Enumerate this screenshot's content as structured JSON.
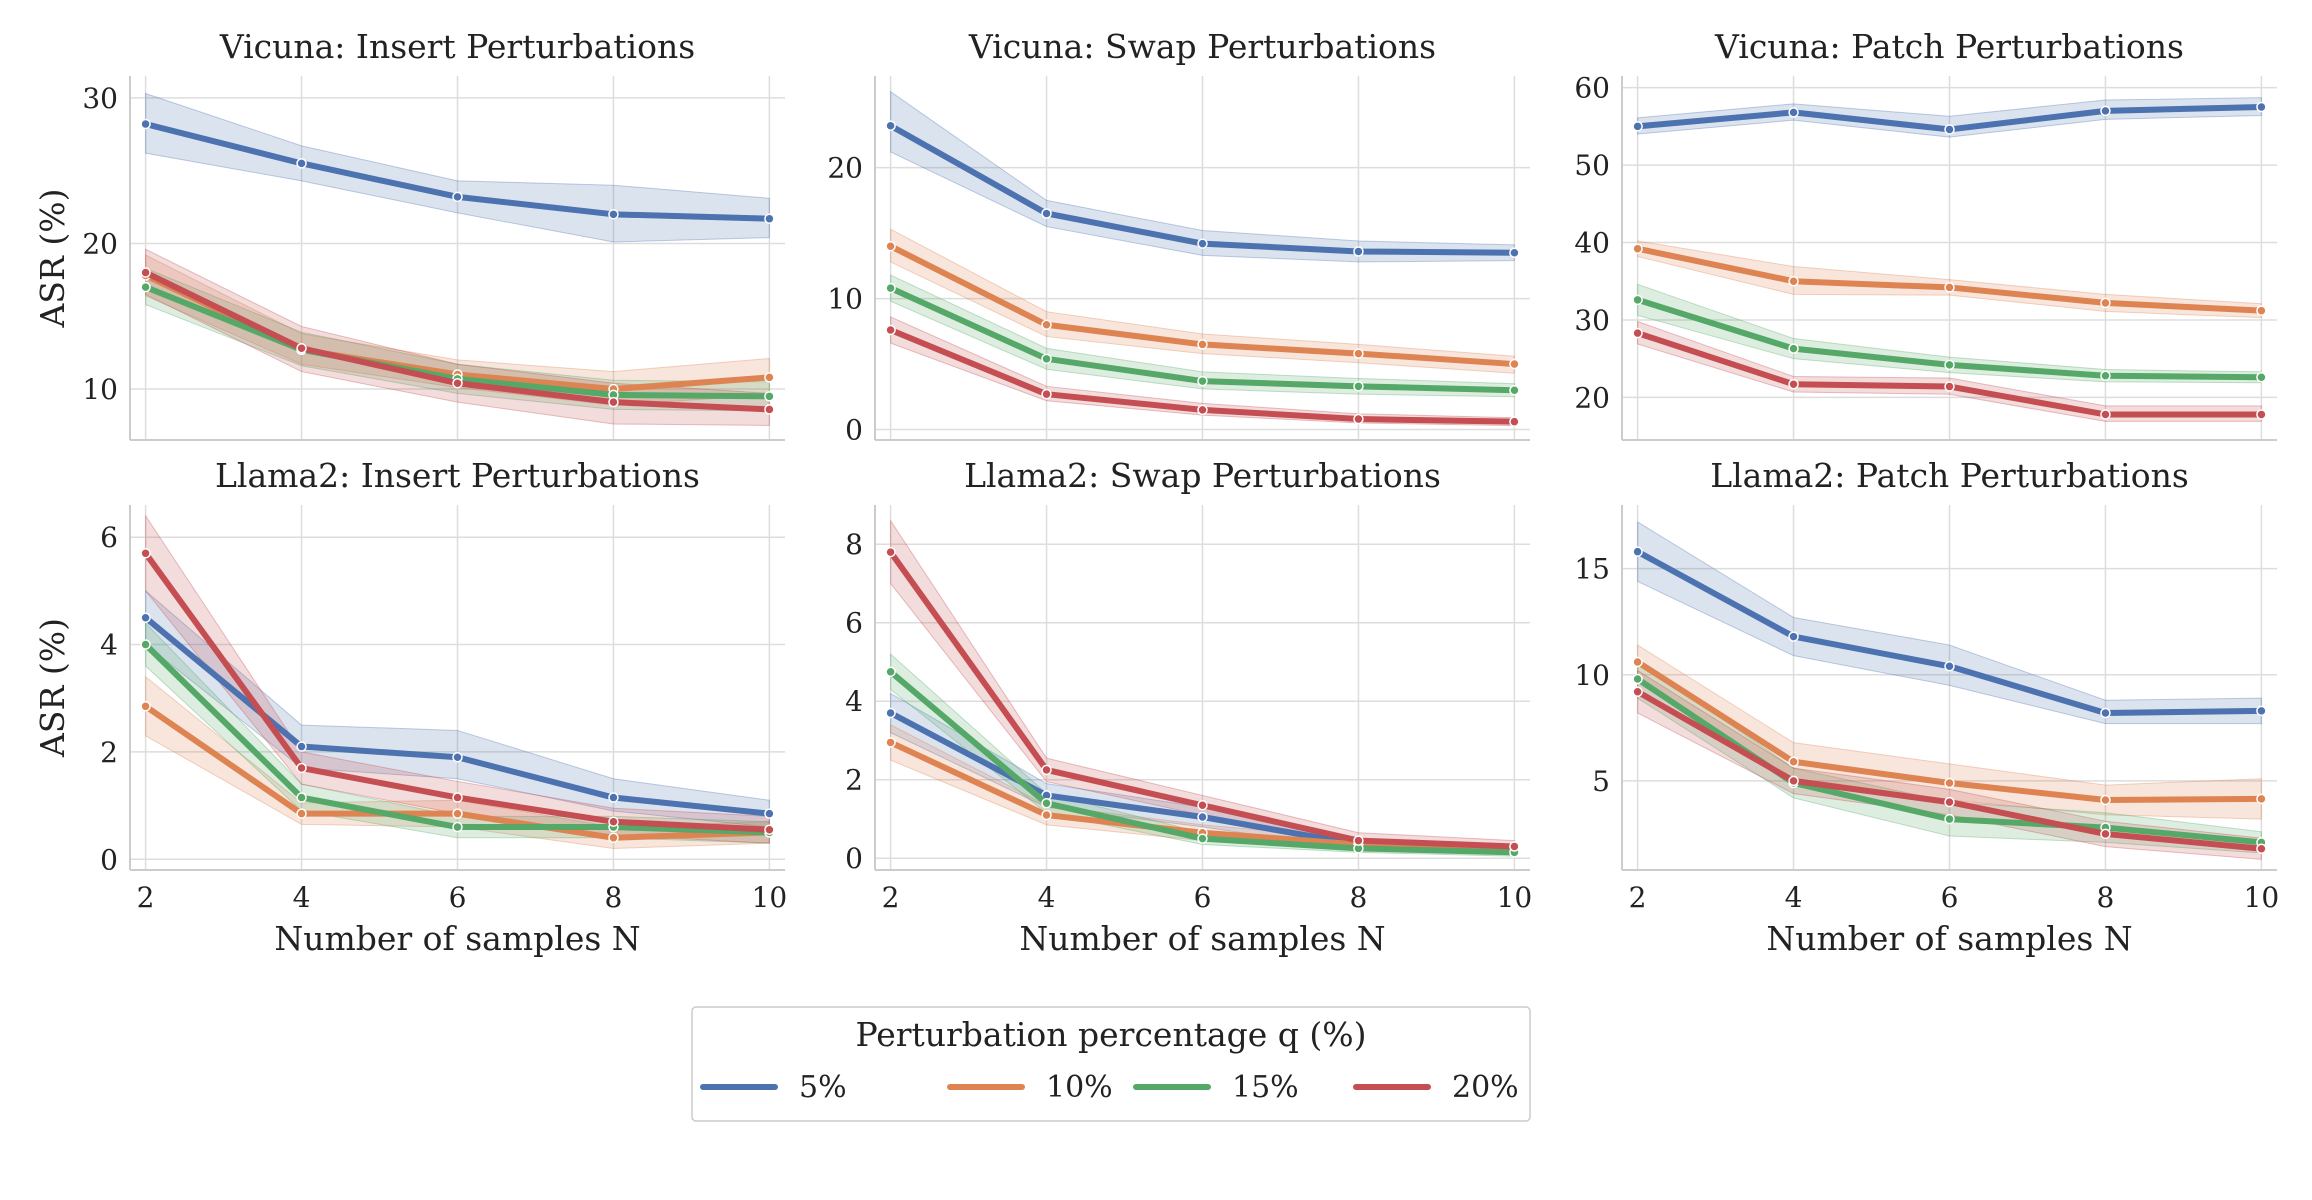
{
  "legend": {
    "title": "Perturbation percentage q (%)",
    "entries": [
      {
        "label": "5%",
        "color": "#4c72b0"
      },
      {
        "label": "10%",
        "color": "#dd8452"
      },
      {
        "label": "15%",
        "color": "#55a868"
      },
      {
        "label": "20%",
        "color": "#c44e52"
      }
    ]
  },
  "chart_data": [
    {
      "type": "line",
      "title": "Vicuna: Insert Perturbations",
      "xlabel": "",
      "ylabel": "ASR (%)",
      "x": [
        2,
        4,
        6,
        8,
        10
      ],
      "xlim": [
        1.8,
        10.2
      ],
      "ylim": [
        6.5,
        31.5
      ],
      "yticks": [
        10,
        20,
        30
      ],
      "series": [
        {
          "name": "5%",
          "color": "#4c72b0",
          "values": [
            28.2,
            25.5,
            23.2,
            22.0,
            21.7
          ],
          "ci_lower": [
            26.2,
            24.3,
            22.1,
            20.1,
            20.4
          ],
          "ci_upper": [
            30.3,
            26.7,
            24.3,
            24.0,
            23.1
          ]
        },
        {
          "name": "10%",
          "color": "#dd8452",
          "values": [
            17.8,
            12.7,
            11.0,
            10.0,
            10.8
          ],
          "ci_lower": [
            16.4,
            11.7,
            10.1,
            8.9,
            9.6
          ],
          "ci_upper": [
            19.2,
            13.8,
            12.0,
            11.2,
            12.1
          ]
        },
        {
          "name": "15%",
          "color": "#55a868",
          "values": [
            17.0,
            12.7,
            10.7,
            9.6,
            9.5
          ],
          "ci_lower": [
            15.8,
            11.6,
            9.7,
            8.6,
            8.5
          ],
          "ci_upper": [
            18.3,
            13.9,
            11.7,
            10.6,
            10.5
          ]
        },
        {
          "name": "20%",
          "color": "#c44e52",
          "values": [
            18.0,
            12.8,
            10.4,
            9.1,
            8.6
          ],
          "ci_lower": [
            16.5,
            11.2,
            9.1,
            7.6,
            7.5
          ],
          "ci_upper": [
            19.6,
            14.3,
            11.7,
            10.4,
            9.7
          ]
        }
      ]
    },
    {
      "type": "line",
      "title": "Vicuna: Swap Perturbations",
      "xlabel": "",
      "ylabel": "",
      "x": [
        2,
        4,
        6,
        8,
        10
      ],
      "xlim": [
        1.8,
        10.2
      ],
      "ylim": [
        -0.8,
        27.0
      ],
      "yticks": [
        0,
        10,
        20
      ],
      "series": [
        {
          "name": "5%",
          "color": "#4c72b0",
          "values": [
            23.2,
            16.5,
            14.2,
            13.6,
            13.5
          ],
          "ci_lower": [
            21.2,
            15.5,
            13.3,
            12.8,
            12.9
          ],
          "ci_upper": [
            25.8,
            17.5,
            15.2,
            14.4,
            14.1
          ]
        },
        {
          "name": "10%",
          "color": "#dd8452",
          "values": [
            14.0,
            8.0,
            6.5,
            5.8,
            5.0
          ],
          "ci_lower": [
            12.8,
            7.1,
            5.8,
            5.1,
            4.3
          ],
          "ci_upper": [
            15.3,
            9.0,
            7.3,
            6.5,
            5.6
          ]
        },
        {
          "name": "15%",
          "color": "#55a868",
          "values": [
            10.8,
            5.4,
            3.7,
            3.3,
            3.0
          ],
          "ci_lower": [
            9.8,
            4.6,
            3.1,
            2.7,
            2.5
          ],
          "ci_upper": [
            11.8,
            6.2,
            4.4,
            3.9,
            3.5
          ]
        },
        {
          "name": "20%",
          "color": "#c44e52",
          "values": [
            7.6,
            2.7,
            1.5,
            0.8,
            0.6
          ],
          "ci_lower": [
            6.6,
            2.2,
            1.1,
            0.5,
            0.3
          ],
          "ci_upper": [
            8.6,
            3.3,
            2.0,
            1.2,
            0.9
          ]
        }
      ]
    },
    {
      "type": "line",
      "title": "Vicuna: Patch Perturbations",
      "xlabel": "",
      "ylabel": "",
      "x": [
        2,
        4,
        6,
        8,
        10
      ],
      "xlim": [
        1.8,
        10.2
      ],
      "ylim": [
        14.5,
        61.5
      ],
      "yticks": [
        20,
        30,
        40,
        50,
        60
      ],
      "series": [
        {
          "name": "5%",
          "color": "#4c72b0",
          "values": [
            55.0,
            56.8,
            54.6,
            57.0,
            57.5
          ],
          "ci_lower": [
            54.0,
            55.8,
            53.6,
            55.9,
            56.4
          ],
          "ci_upper": [
            56.1,
            57.9,
            56.3,
            58.4,
            58.7
          ]
        },
        {
          "name": "10%",
          "color": "#dd8452",
          "values": [
            39.2,
            35.0,
            34.2,
            32.2,
            31.2
          ],
          "ci_lower": [
            38.2,
            33.3,
            33.2,
            31.1,
            30.3
          ],
          "ci_upper": [
            40.2,
            36.9,
            35.2,
            33.3,
            32.1
          ]
        },
        {
          "name": "15%",
          "color": "#55a868",
          "values": [
            32.6,
            26.3,
            24.2,
            22.8,
            22.6
          ],
          "ci_lower": [
            30.6,
            25.0,
            23.2,
            22.0,
            21.9
          ],
          "ci_upper": [
            34.6,
            27.6,
            25.2,
            23.6,
            23.3
          ]
        },
        {
          "name": "20%",
          "color": "#c44e52",
          "values": [
            28.3,
            21.7,
            21.4,
            17.8,
            17.8
          ],
          "ci_lower": [
            26.9,
            20.7,
            20.4,
            16.9,
            16.9
          ],
          "ci_upper": [
            29.8,
            22.7,
            22.5,
            18.9,
            18.9
          ]
        }
      ]
    },
    {
      "type": "line",
      "title": "Llama2: Insert Perturbations",
      "xlabel": "Number of samples N",
      "ylabel": "ASR (%)",
      "x": [
        2,
        4,
        6,
        8,
        10
      ],
      "xticks": [
        2,
        4,
        6,
        8,
        10
      ],
      "xlim": [
        1.8,
        10.2
      ],
      "ylim": [
        -0.2,
        6.6
      ],
      "yticks": [
        0,
        2,
        4,
        6
      ],
      "series": [
        {
          "name": "5%",
          "color": "#4c72b0",
          "values": [
            4.5,
            2.1,
            1.9,
            1.15,
            0.85
          ],
          "ci_lower": [
            4.0,
            1.7,
            1.5,
            0.9,
            0.6
          ],
          "ci_upper": [
            5.0,
            2.5,
            2.4,
            1.5,
            1.1
          ]
        },
        {
          "name": "10%",
          "color": "#dd8452",
          "values": [
            2.85,
            0.85,
            0.85,
            0.4,
            0.5
          ],
          "ci_lower": [
            2.3,
            0.65,
            0.6,
            0.2,
            0.3
          ],
          "ci_upper": [
            3.4,
            1.05,
            1.1,
            0.6,
            0.7
          ]
        },
        {
          "name": "15%",
          "color": "#55a868",
          "values": [
            4.0,
            1.15,
            0.6,
            0.6,
            0.5
          ],
          "ci_lower": [
            3.6,
            0.9,
            0.4,
            0.4,
            0.3
          ],
          "ci_upper": [
            4.4,
            1.4,
            0.8,
            0.8,
            0.7
          ]
        },
        {
          "name": "20%",
          "color": "#c44e52",
          "values": [
            5.7,
            1.7,
            1.15,
            0.7,
            0.55
          ],
          "ci_lower": [
            5.0,
            1.4,
            0.85,
            0.45,
            0.3
          ],
          "ci_upper": [
            6.4,
            2.0,
            1.45,
            0.95,
            0.8
          ]
        }
      ]
    },
    {
      "type": "line",
      "title": "Llama2: Swap Perturbations",
      "xlabel": "Number of samples N",
      "ylabel": "",
      "x": [
        2,
        4,
        6,
        8,
        10
      ],
      "xticks": [
        2,
        4,
        6,
        8,
        10
      ],
      "xlim": [
        1.8,
        10.2
      ],
      "ylim": [
        -0.3,
        9.0
      ],
      "yticks": [
        0,
        2,
        4,
        6,
        8
      ],
      "series": [
        {
          "name": "5%",
          "color": "#4c72b0",
          "values": [
            3.7,
            1.6,
            1.05,
            0.35,
            0.2
          ],
          "ci_lower": [
            3.2,
            1.3,
            0.8,
            0.2,
            0.1
          ],
          "ci_upper": [
            4.2,
            1.9,
            1.3,
            0.5,
            0.3
          ]
        },
        {
          "name": "10%",
          "color": "#dd8452",
          "values": [
            2.95,
            1.1,
            0.65,
            0.35,
            0.2
          ],
          "ci_lower": [
            2.5,
            0.85,
            0.45,
            0.2,
            0.1
          ],
          "ci_upper": [
            3.4,
            1.35,
            0.85,
            0.5,
            0.3
          ]
        },
        {
          "name": "15%",
          "color": "#55a868",
          "values": [
            4.75,
            1.4,
            0.5,
            0.25,
            0.15
          ],
          "ci_lower": [
            4.3,
            1.15,
            0.35,
            0.15,
            0.05
          ],
          "ci_upper": [
            5.2,
            1.65,
            0.65,
            0.4,
            0.25
          ]
        },
        {
          "name": "20%",
          "color": "#c44e52",
          "values": [
            7.8,
            2.25,
            1.35,
            0.45,
            0.3
          ],
          "ci_lower": [
            7.0,
            1.95,
            1.1,
            0.3,
            0.15
          ],
          "ci_upper": [
            8.6,
            2.55,
            1.6,
            0.65,
            0.45
          ]
        }
      ]
    },
    {
      "type": "line",
      "title": "Llama2: Patch Perturbations",
      "xlabel": "Number of samples N",
      "ylabel": "",
      "x": [
        2,
        4,
        6,
        8,
        10
      ],
      "xticks": [
        2,
        4,
        6,
        8,
        10
      ],
      "xlim": [
        1.8,
        10.2
      ],
      "ylim": [
        0.8,
        18.0
      ],
      "yticks": [
        5,
        10,
        15
      ],
      "series": [
        {
          "name": "5%",
          "color": "#4c72b0",
          "values": [
            15.8,
            11.8,
            10.4,
            8.2,
            8.3
          ],
          "ci_lower": [
            14.4,
            10.9,
            9.5,
            7.7,
            7.7
          ],
          "ci_upper": [
            17.2,
            12.7,
            11.4,
            8.8,
            8.9
          ]
        },
        {
          "name": "10%",
          "color": "#dd8452",
          "values": [
            10.6,
            5.9,
            4.9,
            4.1,
            4.15
          ],
          "ci_lower": [
            9.8,
            5.0,
            4.1,
            3.4,
            3.2
          ],
          "ci_upper": [
            11.4,
            6.8,
            5.8,
            4.8,
            5.1
          ]
        },
        {
          "name": "15%",
          "color": "#55a868",
          "values": [
            9.8,
            4.9,
            3.2,
            2.8,
            2.1
          ],
          "ci_lower": [
            8.9,
            4.2,
            2.4,
            2.1,
            1.6
          ],
          "ci_upper": [
            10.7,
            5.6,
            4.0,
            3.5,
            2.6
          ]
        },
        {
          "name": "20%",
          "color": "#c44e52",
          "values": [
            9.2,
            5.0,
            4.0,
            2.5,
            1.8
          ],
          "ci_lower": [
            8.2,
            4.4,
            3.4,
            1.9,
            1.3
          ],
          "ci_upper": [
            10.2,
            5.6,
            4.6,
            3.1,
            2.3
          ]
        }
      ]
    }
  ]
}
